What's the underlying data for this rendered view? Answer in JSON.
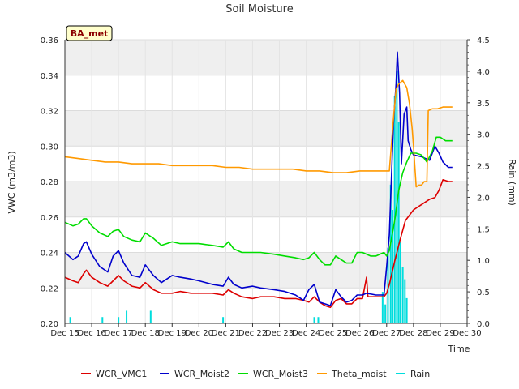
{
  "chart_data": {
    "type": "line",
    "title": "Soil Moisture",
    "xlabel": "Time",
    "ylabel": "VWC (m3/m3)",
    "y2label": "Rain (mm)",
    "badge": "BA_met",
    "xlim": [
      15,
      30
    ],
    "ylim": [
      0.2,
      0.36
    ],
    "y2lim": [
      0.0,
      4.5
    ],
    "xticks": [
      {
        "v": 15,
        "label": "Dec 15"
      },
      {
        "v": 16,
        "label": "Dec 16"
      },
      {
        "v": 17,
        "label": "Dec 17"
      },
      {
        "v": 18,
        "label": "Dec 18"
      },
      {
        "v": 19,
        "label": "Dec 19"
      },
      {
        "v": 20,
        "label": "Dec 20"
      },
      {
        "v": 21,
        "label": "Dec 21"
      },
      {
        "v": 22,
        "label": "Dec 22"
      },
      {
        "v": 23,
        "label": "Dec 23"
      },
      {
        "v": 24,
        "label": "Dec 24"
      },
      {
        "v": 25,
        "label": "Dec 25"
      },
      {
        "v": 26,
        "label": "Dec 26"
      },
      {
        "v": 27,
        "label": "Dec 27"
      },
      {
        "v": 28,
        "label": "Dec 28"
      },
      {
        "v": 29,
        "label": "Dec 29"
      },
      {
        "v": 30,
        "label": "Dec 30"
      }
    ],
    "yticks": [
      {
        "v": 0.2,
        "label": "0.20"
      },
      {
        "v": 0.22,
        "label": "0.22"
      },
      {
        "v": 0.24,
        "label": "0.24"
      },
      {
        "v": 0.26,
        "label": "0.26"
      },
      {
        "v": 0.28,
        "label": "0.28"
      },
      {
        "v": 0.3,
        "label": "0.30"
      },
      {
        "v": 0.32,
        "label": "0.32"
      },
      {
        "v": 0.34,
        "label": "0.34"
      },
      {
        "v": 0.36,
        "label": "0.36"
      }
    ],
    "y2ticks": [
      {
        "v": 0.0,
        "label": "0.0"
      },
      {
        "v": 0.5,
        "label": "0.5"
      },
      {
        "v": 1.0,
        "label": "1.0"
      },
      {
        "v": 1.5,
        "label": "1.5"
      },
      {
        "v": 2.0,
        "label": "2.0"
      },
      {
        "v": 2.5,
        "label": "2.5"
      },
      {
        "v": 3.0,
        "label": "3.0"
      },
      {
        "v": 3.5,
        "label": "3.5"
      },
      {
        "v": 4.0,
        "label": "4.0"
      },
      {
        "v": 4.5,
        "label": "4.5"
      }
    ],
    "series": [
      {
        "name": "WCR_VMC1",
        "color": "#dd0000",
        "axis": "left",
        "points": [
          [
            15.0,
            0.226
          ],
          [
            15.3,
            0.224
          ],
          [
            15.5,
            0.223
          ],
          [
            15.7,
            0.228
          ],
          [
            15.8,
            0.23
          ],
          [
            16.0,
            0.226
          ],
          [
            16.3,
            0.223
          ],
          [
            16.6,
            0.221
          ],
          [
            16.8,
            0.224
          ],
          [
            17.0,
            0.227
          ],
          [
            17.2,
            0.224
          ],
          [
            17.5,
            0.221
          ],
          [
            17.8,
            0.22
          ],
          [
            18.0,
            0.223
          ],
          [
            18.3,
            0.219
          ],
          [
            18.6,
            0.217
          ],
          [
            19.0,
            0.217
          ],
          [
            19.3,
            0.218
          ],
          [
            19.7,
            0.217
          ],
          [
            20.0,
            0.217
          ],
          [
            20.5,
            0.217
          ],
          [
            20.9,
            0.216
          ],
          [
            21.1,
            0.219
          ],
          [
            21.3,
            0.217
          ],
          [
            21.6,
            0.215
          ],
          [
            22.0,
            0.214
          ],
          [
            22.3,
            0.215
          ],
          [
            22.8,
            0.215
          ],
          [
            23.2,
            0.214
          ],
          [
            23.6,
            0.214
          ],
          [
            23.9,
            0.213
          ],
          [
            24.1,
            0.212
          ],
          [
            24.3,
            0.215
          ],
          [
            24.5,
            0.212
          ],
          [
            24.7,
            0.21
          ],
          [
            24.9,
            0.209
          ],
          [
            25.1,
            0.213
          ],
          [
            25.3,
            0.214
          ],
          [
            25.5,
            0.211
          ],
          [
            25.7,
            0.211
          ],
          [
            25.9,
            0.214
          ],
          [
            26.1,
            0.214
          ],
          [
            26.25,
            0.226
          ],
          [
            26.3,
            0.215
          ],
          [
            26.6,
            0.215
          ],
          [
            26.9,
            0.215
          ],
          [
            27.0,
            0.217
          ],
          [
            27.1,
            0.222
          ],
          [
            27.3,
            0.235
          ],
          [
            27.5,
            0.247
          ],
          [
            27.7,
            0.258
          ],
          [
            28.0,
            0.264
          ],
          [
            28.3,
            0.267
          ],
          [
            28.6,
            0.27
          ],
          [
            28.8,
            0.271
          ],
          [
            28.95,
            0.275
          ],
          [
            29.1,
            0.281
          ],
          [
            29.3,
            0.28
          ],
          [
            29.45,
            0.28
          ]
        ]
      },
      {
        "name": "WCR_Moist2",
        "color": "#0000cc",
        "axis": "left",
        "points": [
          [
            15.0,
            0.24
          ],
          [
            15.3,
            0.236
          ],
          [
            15.5,
            0.238
          ],
          [
            15.7,
            0.245
          ],
          [
            15.8,
            0.246
          ],
          [
            16.0,
            0.239
          ],
          [
            16.3,
            0.232
          ],
          [
            16.6,
            0.229
          ],
          [
            16.8,
            0.238
          ],
          [
            17.0,
            0.241
          ],
          [
            17.2,
            0.234
          ],
          [
            17.5,
            0.227
          ],
          [
            17.8,
            0.226
          ],
          [
            18.0,
            0.233
          ],
          [
            18.3,
            0.227
          ],
          [
            18.6,
            0.223
          ],
          [
            19.0,
            0.227
          ],
          [
            19.3,
            0.226
          ],
          [
            19.7,
            0.225
          ],
          [
            20.0,
            0.224
          ],
          [
            20.5,
            0.222
          ],
          [
            20.9,
            0.221
          ],
          [
            21.1,
            0.226
          ],
          [
            21.3,
            0.222
          ],
          [
            21.6,
            0.22
          ],
          [
            22.0,
            0.221
          ],
          [
            22.3,
            0.22
          ],
          [
            22.8,
            0.219
          ],
          [
            23.2,
            0.218
          ],
          [
            23.6,
            0.216
          ],
          [
            23.9,
            0.213
          ],
          [
            24.1,
            0.219
          ],
          [
            24.3,
            0.222
          ],
          [
            24.5,
            0.212
          ],
          [
            24.7,
            0.211
          ],
          [
            24.9,
            0.21
          ],
          [
            25.1,
            0.219
          ],
          [
            25.3,
            0.215
          ],
          [
            25.5,
            0.212
          ],
          [
            25.7,
            0.213
          ],
          [
            25.9,
            0.216
          ],
          [
            26.1,
            0.216
          ],
          [
            26.25,
            0.217
          ],
          [
            26.6,
            0.216
          ],
          [
            26.9,
            0.216
          ],
          [
            27.0,
            0.232
          ],
          [
            27.1,
            0.25
          ],
          [
            27.25,
            0.312
          ],
          [
            27.35,
            0.335
          ],
          [
            27.4,
            0.353
          ],
          [
            27.48,
            0.33
          ],
          [
            27.55,
            0.29
          ],
          [
            27.65,
            0.318
          ],
          [
            27.75,
            0.322
          ],
          [
            27.8,
            0.303
          ],
          [
            27.9,
            0.298
          ],
          [
            28.0,
            0.295
          ],
          [
            28.3,
            0.294
          ],
          [
            28.6,
            0.292
          ],
          [
            28.8,
            0.3
          ],
          [
            28.95,
            0.296
          ],
          [
            29.1,
            0.291
          ],
          [
            29.3,
            0.288
          ],
          [
            29.45,
            0.288
          ]
        ]
      },
      {
        "name": "WCR_Moist3",
        "color": "#00dd00",
        "axis": "left",
        "points": [
          [
            15.0,
            0.257
          ],
          [
            15.3,
            0.255
          ],
          [
            15.5,
            0.256
          ],
          [
            15.7,
            0.259
          ],
          [
            15.8,
            0.259
          ],
          [
            16.0,
            0.255
          ],
          [
            16.3,
            0.251
          ],
          [
            16.6,
            0.249
          ],
          [
            16.8,
            0.252
          ],
          [
            17.0,
            0.253
          ],
          [
            17.2,
            0.249
          ],
          [
            17.5,
            0.247
          ],
          [
            17.8,
            0.246
          ],
          [
            18.0,
            0.251
          ],
          [
            18.3,
            0.248
          ],
          [
            18.6,
            0.244
          ],
          [
            19.0,
            0.246
          ],
          [
            19.3,
            0.245
          ],
          [
            19.7,
            0.245
          ],
          [
            20.0,
            0.245
          ],
          [
            20.5,
            0.244
          ],
          [
            20.9,
            0.243
          ],
          [
            21.1,
            0.246
          ],
          [
            21.3,
            0.242
          ],
          [
            21.6,
            0.24
          ],
          [
            22.0,
            0.24
          ],
          [
            22.3,
            0.24
          ],
          [
            22.8,
            0.239
          ],
          [
            23.2,
            0.238
          ],
          [
            23.6,
            0.237
          ],
          [
            23.9,
            0.236
          ],
          [
            24.1,
            0.237
          ],
          [
            24.3,
            0.24
          ],
          [
            24.5,
            0.236
          ],
          [
            24.7,
            0.233
          ],
          [
            24.9,
            0.233
          ],
          [
            25.1,
            0.238
          ],
          [
            25.3,
            0.236
          ],
          [
            25.5,
            0.234
          ],
          [
            25.7,
            0.234
          ],
          [
            25.9,
            0.24
          ],
          [
            26.1,
            0.24
          ],
          [
            26.4,
            0.238
          ],
          [
            26.6,
            0.238
          ],
          [
            26.9,
            0.24
          ],
          [
            27.0,
            0.238
          ],
          [
            27.1,
            0.241
          ],
          [
            27.3,
            0.258
          ],
          [
            27.45,
            0.275
          ],
          [
            27.6,
            0.285
          ],
          [
            27.75,
            0.291
          ],
          [
            27.9,
            0.296
          ],
          [
            28.1,
            0.296
          ],
          [
            28.3,
            0.295
          ],
          [
            28.5,
            0.291
          ],
          [
            28.7,
            0.297
          ],
          [
            28.85,
            0.305
          ],
          [
            29.0,
            0.305
          ],
          [
            29.2,
            0.303
          ],
          [
            29.45,
            0.303
          ]
        ]
      },
      {
        "name": "Theta_moist",
        "color": "#ff9900",
        "axis": "left",
        "points": [
          [
            15.0,
            0.294
          ],
          [
            15.5,
            0.293
          ],
          [
            16.0,
            0.292
          ],
          [
            16.5,
            0.291
          ],
          [
            17.0,
            0.291
          ],
          [
            17.5,
            0.29
          ],
          [
            18.0,
            0.29
          ],
          [
            18.5,
            0.29
          ],
          [
            19.0,
            0.289
          ],
          [
            19.5,
            0.289
          ],
          [
            20.0,
            0.289
          ],
          [
            20.5,
            0.289
          ],
          [
            21.0,
            0.288
          ],
          [
            21.5,
            0.288
          ],
          [
            22.0,
            0.287
          ],
          [
            22.5,
            0.287
          ],
          [
            23.0,
            0.287
          ],
          [
            23.5,
            0.287
          ],
          [
            24.0,
            0.286
          ],
          [
            24.5,
            0.286
          ],
          [
            25.0,
            0.285
          ],
          [
            25.5,
            0.285
          ],
          [
            26.0,
            0.286
          ],
          [
            26.5,
            0.286
          ],
          [
            27.0,
            0.286
          ],
          [
            27.1,
            0.286
          ],
          [
            27.25,
            0.315
          ],
          [
            27.35,
            0.332
          ],
          [
            27.45,
            0.335
          ],
          [
            27.6,
            0.337
          ],
          [
            27.75,
            0.333
          ],
          [
            27.85,
            0.324
          ],
          [
            27.95,
            0.31
          ],
          [
            28.0,
            0.3
          ],
          [
            28.1,
            0.277
          ],
          [
            28.2,
            0.278
          ],
          [
            28.3,
            0.278
          ],
          [
            28.4,
            0.28
          ],
          [
            28.5,
            0.28
          ],
          [
            28.55,
            0.32
          ],
          [
            28.7,
            0.321
          ],
          [
            28.9,
            0.321
          ],
          [
            29.1,
            0.322
          ],
          [
            29.3,
            0.322
          ],
          [
            29.45,
            0.322
          ]
        ]
      }
    ],
    "rain": {
      "name": "Rain",
      "color": "#00dddd",
      "axis": "right",
      "bars": [
        [
          15.2,
          0.1
        ],
        [
          16.4,
          0.1
        ],
        [
          17.0,
          0.1
        ],
        [
          17.3,
          0.2
        ],
        [
          18.2,
          0.2
        ],
        [
          20.9,
          0.1
        ],
        [
          24.3,
          0.1
        ],
        [
          24.45,
          0.1
        ],
        [
          26.85,
          0.5
        ],
        [
          26.95,
          0.3
        ],
        [
          27.05,
          1.2
        ],
        [
          27.15,
          2.2
        ],
        [
          27.22,
          1.8
        ],
        [
          27.3,
          3.6
        ],
        [
          27.38,
          4.0
        ],
        [
          27.45,
          3.2
        ],
        [
          27.52,
          1.3
        ],
        [
          27.6,
          0.9
        ],
        [
          27.68,
          0.7
        ],
        [
          27.75,
          0.4
        ]
      ]
    },
    "legend": [
      {
        "label": "WCR_VMC1",
        "color": "#dd0000"
      },
      {
        "label": "WCR_Moist2",
        "color": "#0000cc"
      },
      {
        "label": "WCR_Moist3",
        "color": "#00dd00"
      },
      {
        "label": "Theta_moist",
        "color": "#ff9900"
      },
      {
        "label": "Rain",
        "color": "#00dddd"
      }
    ],
    "legend_position": "bottom"
  }
}
